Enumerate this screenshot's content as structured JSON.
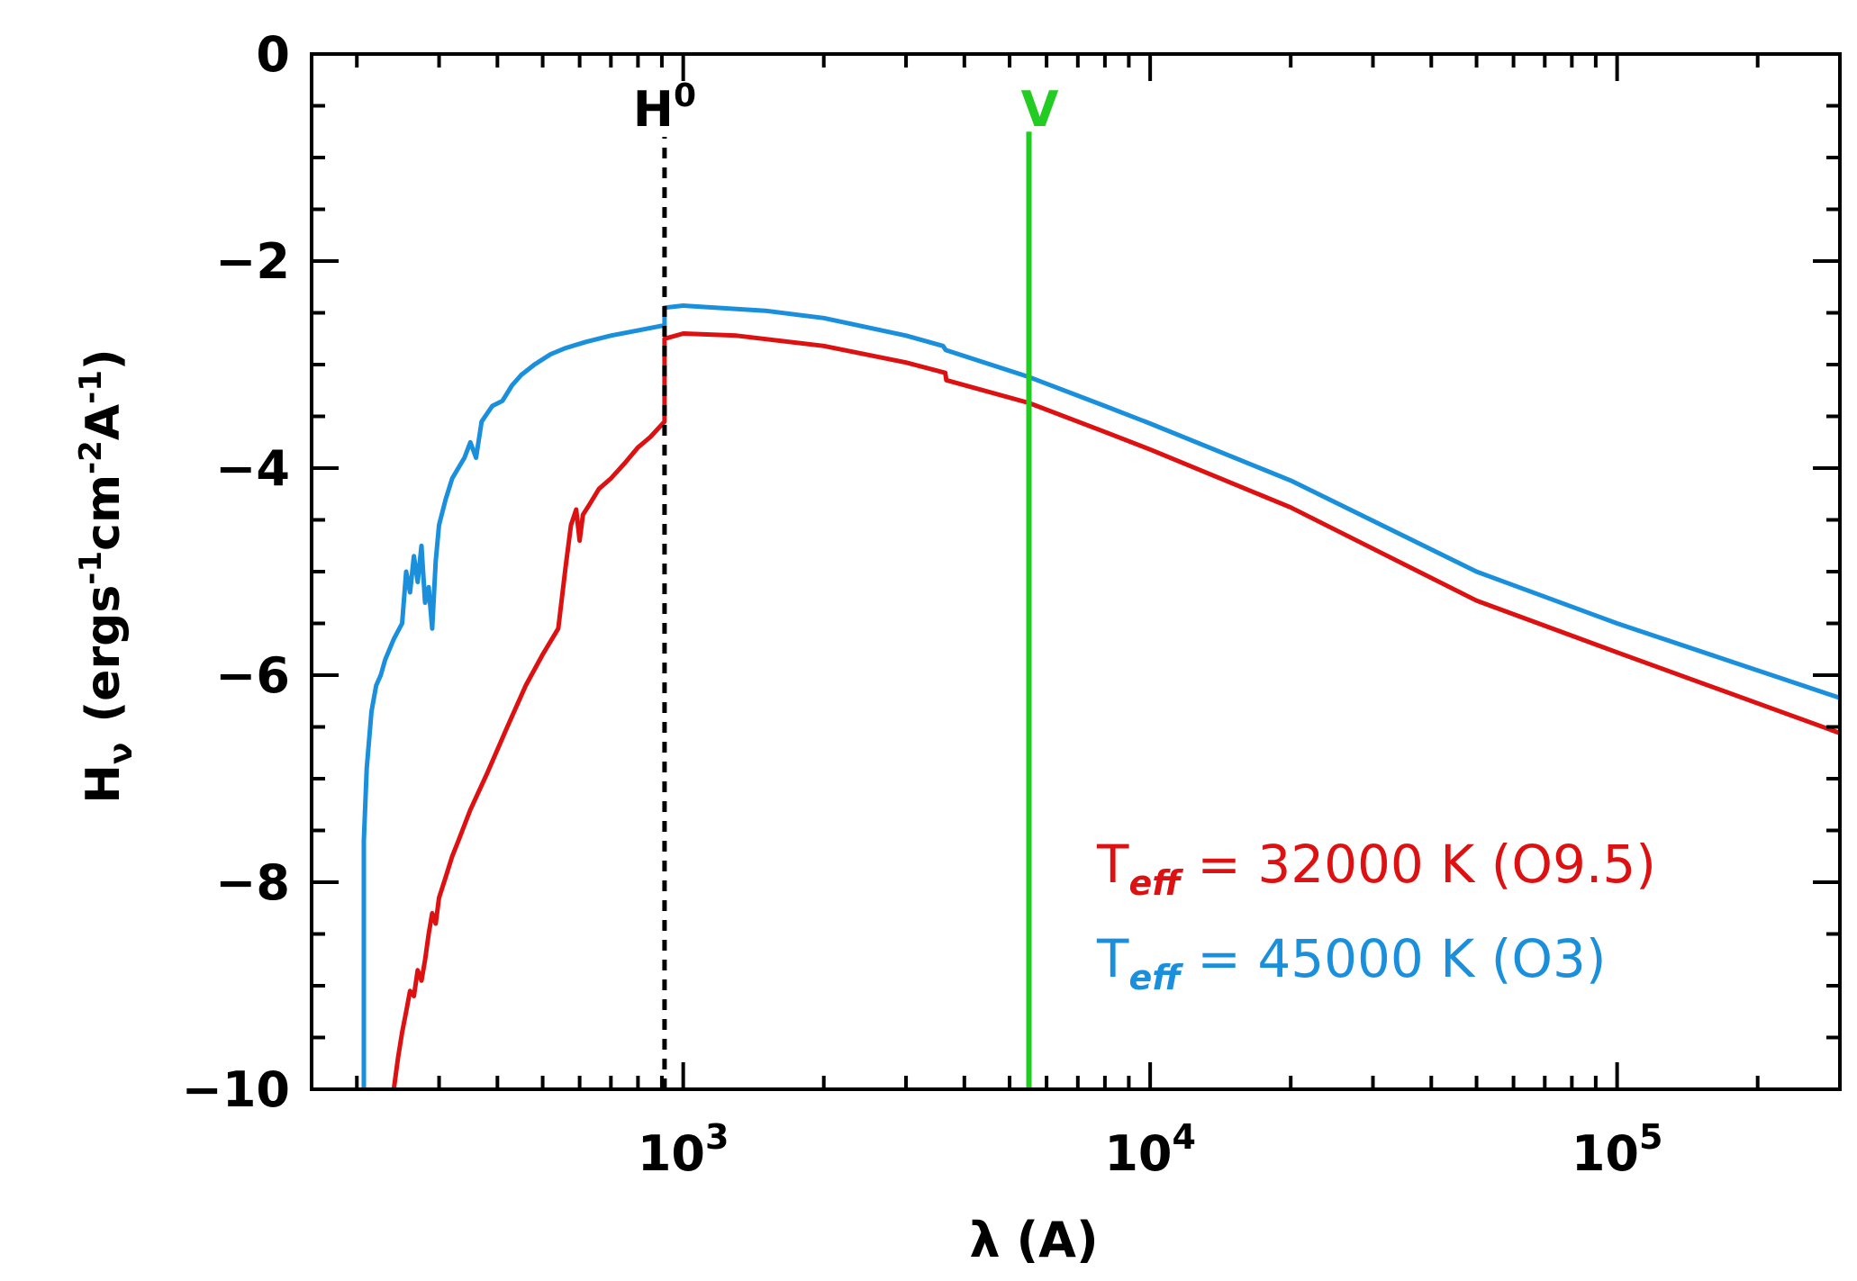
{
  "chart_data": {
    "type": "line",
    "x_scale": "log",
    "xlim": [
      160,
      300000
    ],
    "ylim": [
      -10,
      0
    ],
    "xlabel_symbol": "λ",
    "xlabel_unit": "(A)",
    "ylabel_symbol": "H",
    "ylabel_sub": "ν",
    "ylabel_unit_parts": [
      "(ergs",
      "-1",
      "cm",
      "-2",
      "A",
      "-1",
      ")"
    ],
    "y_ticks": [
      0,
      -2,
      -4,
      -6,
      -8,
      -10
    ],
    "y_tick_labels": [
      "0",
      "−2",
      "−4",
      "−6",
      "−8",
      "−10"
    ],
    "x_ticks": [
      {
        "value": 1000,
        "base": "10",
        "exp": "3"
      },
      {
        "value": 10000,
        "base": "10",
        "exp": "4"
      },
      {
        "value": 100000,
        "base": "10",
        "exp": "5"
      }
    ],
    "grid": false,
    "annotations": [
      {
        "name": "H0-edge",
        "label_base": "H",
        "label_sup": "0",
        "x": 912,
        "y_from": -10,
        "y_to": -0.8,
        "color": "#000000",
        "style": "dashed"
      },
      {
        "name": "v-band",
        "label": "V",
        "x": 5500,
        "y_from": -10,
        "y_to": -0.75,
        "color": "#22cc22",
        "style": "solid"
      }
    ],
    "legend_position": "bottom-right",
    "series": [
      {
        "legend": {
          "symbol": "T",
          "sub": "eff",
          "rest": " =  32000 K (O9.5)"
        },
        "color": "#dd1111",
        "points": [
          [
            240,
            -10.0
          ],
          [
            245,
            -9.7
          ],
          [
            250,
            -9.45
          ],
          [
            255,
            -9.25
          ],
          [
            260,
            -9.05
          ],
          [
            265,
            -9.1
          ],
          [
            270,
            -8.85
          ],
          [
            275,
            -8.95
          ],
          [
            280,
            -8.75
          ],
          [
            285,
            -8.5
          ],
          [
            290,
            -8.3
          ],
          [
            295,
            -8.4
          ],
          [
            300,
            -8.15
          ],
          [
            310,
            -7.95
          ],
          [
            320,
            -7.75
          ],
          [
            330,
            -7.6
          ],
          [
            350,
            -7.3
          ],
          [
            380,
            -6.95
          ],
          [
            420,
            -6.5
          ],
          [
            460,
            -6.1
          ],
          [
            500,
            -5.8
          ],
          [
            540,
            -5.55
          ],
          [
            560,
            -4.95
          ],
          [
            575,
            -4.55
          ],
          [
            590,
            -4.4
          ],
          [
            600,
            -4.7
          ],
          [
            610,
            -4.45
          ],
          [
            630,
            -4.35
          ],
          [
            660,
            -4.2
          ],
          [
            700,
            -4.1
          ],
          [
            750,
            -3.95
          ],
          [
            800,
            -3.8
          ],
          [
            850,
            -3.7
          ],
          [
            912,
            -3.55
          ],
          [
            912,
            -2.75
          ],
          [
            1000,
            -2.7
          ],
          [
            1300,
            -2.72
          ],
          [
            2000,
            -2.82
          ],
          [
            3000,
            -2.98
          ],
          [
            3640,
            -3.08
          ],
          [
            3660,
            -3.15
          ],
          [
            5500,
            -3.37
          ],
          [
            8000,
            -3.65
          ],
          [
            10000,
            -3.82
          ],
          [
            20000,
            -4.38
          ],
          [
            50000,
            -5.28
          ],
          [
            100000,
            -5.78
          ],
          [
            300000,
            -6.56
          ]
        ]
      },
      {
        "legend": {
          "symbol": "T",
          "sub": "eff",
          "rest": " =  45000 K (O3)"
        },
        "color": "#1a8fdc",
        "points": [
          [
            207,
            -10.0
          ],
          [
            207,
            -7.6
          ],
          [
            210,
            -6.9
          ],
          [
            215,
            -6.35
          ],
          [
            220,
            -6.1
          ],
          [
            225,
            -6.0
          ],
          [
            230,
            -5.85
          ],
          [
            240,
            -5.65
          ],
          [
            250,
            -5.5
          ],
          [
            255,
            -5.0
          ],
          [
            260,
            -5.2
          ],
          [
            265,
            -4.85
          ],
          [
            270,
            -5.1
          ],
          [
            275,
            -4.75
          ],
          [
            280,
            -5.3
          ],
          [
            285,
            -5.15
          ],
          [
            290,
            -5.55
          ],
          [
            295,
            -4.9
          ],
          [
            300,
            -4.55
          ],
          [
            310,
            -4.3
          ],
          [
            320,
            -4.1
          ],
          [
            340,
            -3.9
          ],
          [
            350,
            -3.75
          ],
          [
            360,
            -3.9
          ],
          [
            370,
            -3.55
          ],
          [
            390,
            -3.4
          ],
          [
            410,
            -3.35
          ],
          [
            430,
            -3.2
          ],
          [
            450,
            -3.1
          ],
          [
            480,
            -3.0
          ],
          [
            520,
            -2.9
          ],
          [
            560,
            -2.84
          ],
          [
            620,
            -2.78
          ],
          [
            700,
            -2.72
          ],
          [
            800,
            -2.67
          ],
          [
            912,
            -2.62
          ],
          [
            912,
            -2.45
          ],
          [
            1000,
            -2.43
          ],
          [
            1500,
            -2.48
          ],
          [
            2000,
            -2.55
          ],
          [
            3000,
            -2.72
          ],
          [
            3600,
            -2.82
          ],
          [
            3650,
            -2.86
          ],
          [
            5500,
            -3.12
          ],
          [
            8000,
            -3.4
          ],
          [
            10000,
            -3.57
          ],
          [
            20000,
            -4.12
          ],
          [
            50000,
            -5.0
          ],
          [
            100000,
            -5.5
          ],
          [
            300000,
            -6.22
          ]
        ]
      }
    ]
  }
}
